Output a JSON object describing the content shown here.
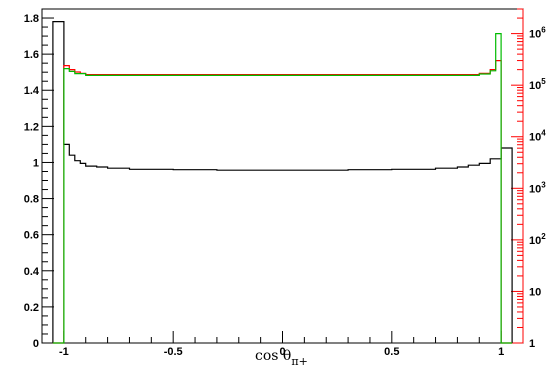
{
  "chart_data": {
    "type": "line",
    "title": "",
    "xlabel_main": "cos θ",
    "xlabel_sub": "π+",
    "ylabel": "",
    "xlim": [
      -1.1,
      1.1
    ],
    "ylim_left": [
      0,
      1.85
    ],
    "ylim_right_log": [
      1,
      3000000
    ],
    "grid": false,
    "legend": "none",
    "x_ticks": [
      {
        "value": -1,
        "label": "-1"
      },
      {
        "value": -0.5,
        "label": "-0.5"
      },
      {
        "value": 0,
        "label": "0"
      },
      {
        "value": 0.5,
        "label": "0.5"
      },
      {
        "value": 1,
        "label": "1"
      }
    ],
    "y_ticks_left": [
      {
        "value": 0,
        "label": "0"
      },
      {
        "value": 0.2,
        "label": "0.2"
      },
      {
        "value": 0.4,
        "label": "0.4"
      },
      {
        "value": 0.6,
        "label": "0.6"
      },
      {
        "value": 0.8,
        "label": "0.8"
      },
      {
        "value": 1,
        "label": "1"
      },
      {
        "value": 1.2,
        "label": "1.2"
      },
      {
        "value": 1.4,
        "label": "1.4"
      },
      {
        "value": 1.6,
        "label": "1.6"
      },
      {
        "value": 1.8,
        "label": "1.8"
      }
    ],
    "y_ticks_right": [
      {
        "value": 1,
        "base": "1",
        "exp": ""
      },
      {
        "value": 10,
        "base": "10",
        "exp": ""
      },
      {
        "value": 100,
        "base": "10",
        "exp": "2"
      },
      {
        "value": 1000,
        "base": "10",
        "exp": "3"
      },
      {
        "value": 10000,
        "base": "10",
        "exp": "4"
      },
      {
        "value": 100000,
        "base": "10",
        "exp": "5"
      },
      {
        "value": 1000000,
        "base": "10",
        "exp": "6"
      }
    ],
    "series": [
      {
        "axis": "left",
        "color": "#000000",
        "bins": [
          {
            "x0": -1.05,
            "x1": -1.0,
            "y": 1.78
          },
          {
            "x0": -1.0,
            "x1": -0.975,
            "y": 1.1
          },
          {
            "x0": -0.975,
            "x1": -0.95,
            "y": 1.04
          },
          {
            "x0": -0.95,
            "x1": -0.925,
            "y": 1.01
          },
          {
            "x0": -0.925,
            "x1": -0.9,
            "y": 0.995
          },
          {
            "x0": -0.9,
            "x1": -0.85,
            "y": 0.98
          },
          {
            "x0": -0.85,
            "x1": -0.8,
            "y": 0.975
          },
          {
            "x0": -0.8,
            "x1": -0.7,
            "y": 0.968
          },
          {
            "x0": -0.7,
            "x1": -0.5,
            "y": 0.962
          },
          {
            "x0": -0.5,
            "x1": -0.3,
            "y": 0.96
          },
          {
            "x0": -0.3,
            "x1": 0.3,
            "y": 0.957
          },
          {
            "x0": 0.3,
            "x1": 0.5,
            "y": 0.96
          },
          {
            "x0": 0.5,
            "x1": 0.7,
            "y": 0.962
          },
          {
            "x0": 0.7,
            "x1": 0.8,
            "y": 0.968
          },
          {
            "x0": 0.8,
            "x1": 0.85,
            "y": 0.975
          },
          {
            "x0": 0.85,
            "x1": 0.9,
            "y": 0.985
          },
          {
            "x0": 0.9,
            "x1": 0.95,
            "y": 0.995
          },
          {
            "x0": 0.95,
            "x1": 1.0,
            "y": 1.02
          },
          {
            "x0": 1.0,
            "x1": 1.05,
            "y": 1.08
          }
        ]
      },
      {
        "axis": "right",
        "color": "#ff0000",
        "bins": [
          {
            "x0": -1.05,
            "x1": -1.0,
            "y": 1
          },
          {
            "x0": -1.0,
            "x1": -0.975,
            "y": 240000
          },
          {
            "x0": -0.975,
            "x1": -0.95,
            "y": 200000
          },
          {
            "x0": -0.95,
            "x1": -0.925,
            "y": 180000
          },
          {
            "x0": -0.925,
            "x1": -0.9,
            "y": 170000
          },
          {
            "x0": -0.9,
            "x1": 0.9,
            "y": 160000
          },
          {
            "x0": 0.9,
            "x1": 0.95,
            "y": 170000
          },
          {
            "x0": 0.95,
            "x1": 0.975,
            "y": 200000
          },
          {
            "x0": 0.975,
            "x1": 1.0,
            "y": 300000
          },
          {
            "x0": 1.0,
            "x1": 1.05,
            "y": 1
          }
        ]
      },
      {
        "axis": "right",
        "color": "#00bb00",
        "bins": [
          {
            "x0": -1.05,
            "x1": -1.0,
            "y": 1
          },
          {
            "x0": -1.0,
            "x1": -0.975,
            "y": 210000
          },
          {
            "x0": -0.975,
            "x1": -0.95,
            "y": 185000
          },
          {
            "x0": -0.95,
            "x1": -0.9,
            "y": 168000
          },
          {
            "x0": -0.9,
            "x1": 0.9,
            "y": 155000
          },
          {
            "x0": 0.9,
            "x1": 0.95,
            "y": 165000
          },
          {
            "x0": 0.95,
            "x1": 0.975,
            "y": 190000
          },
          {
            "x0": 0.975,
            "x1": 1.0,
            "y": 1000000
          },
          {
            "x0": 1.0,
            "x1": 1.05,
            "y": 1
          }
        ]
      }
    ]
  }
}
